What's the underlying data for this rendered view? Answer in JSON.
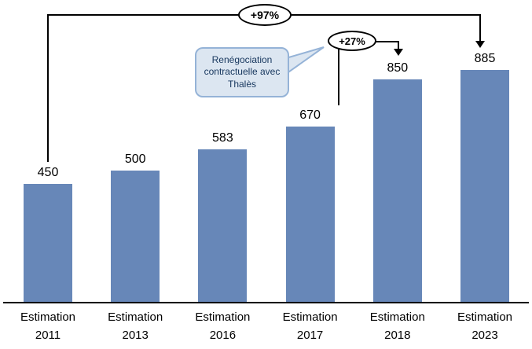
{
  "chart_data": {
    "type": "bar",
    "categories": [
      "Estimation 2011",
      "Estimation 2013",
      "Estimation 2016",
      "Estimation 2017",
      "Estimation 2018",
      "Estimation 2023"
    ],
    "values": [
      450,
      500,
      583,
      670,
      850,
      885
    ],
    "title": "",
    "xlabel": "",
    "ylabel": "",
    "ylim": [
      0,
      900
    ],
    "grid": false,
    "legend": "none",
    "bar_color": "#6787b8",
    "annotations": [
      {
        "label": "+97%",
        "from": "Estimation 2011",
        "to": "Estimation 2023"
      },
      {
        "label": "+27%",
        "from": "Estimation 2017",
        "to": "Estimation 2018"
      }
    ],
    "callout_text": "Renégociation contractuelle avec Thalès"
  }
}
